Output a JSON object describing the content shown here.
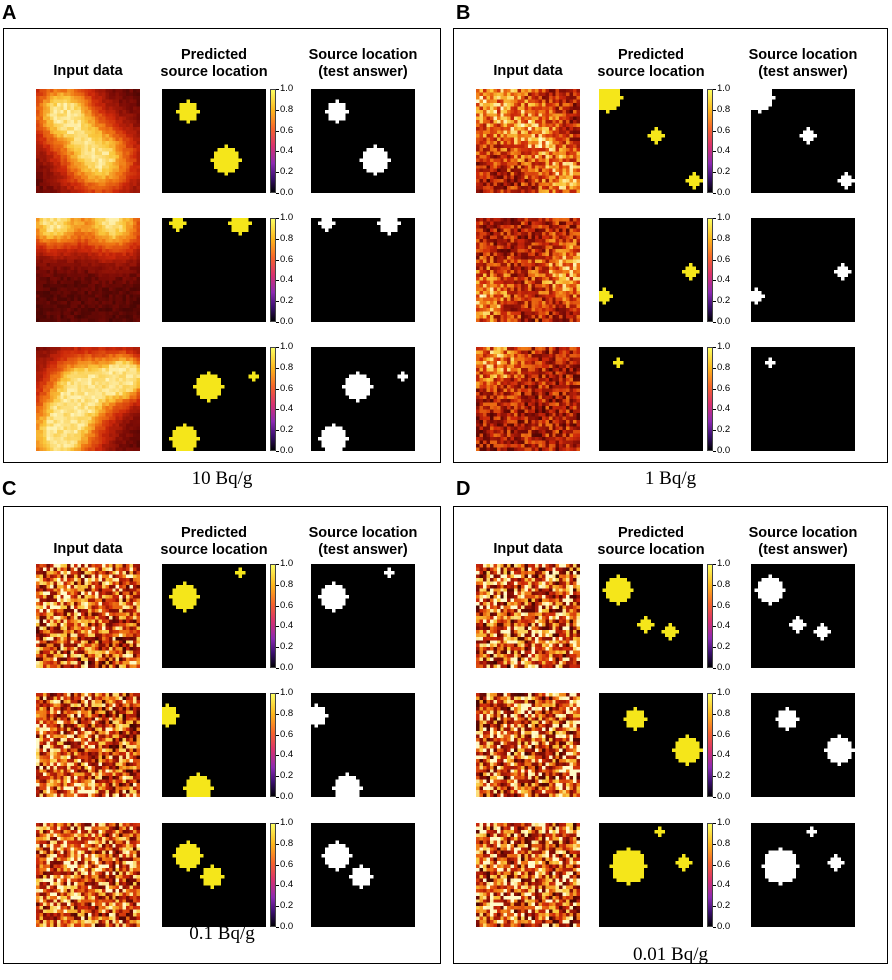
{
  "panels": [
    {
      "letter": "A",
      "caption": "10 Bq/g",
      "headers": {
        "input": "Input data",
        "pred_1": "Predicted",
        "pred_2": "source location",
        "ans_1": "Source location",
        "ans_2": "(test answer)"
      }
    },
    {
      "letter": "B",
      "caption": "1 Bq/g",
      "headers": {
        "input": "Input data",
        "pred_1": "Predicted",
        "pred_2": "source location",
        "ans_1": "Source location",
        "ans_2": "(test answer)"
      }
    },
    {
      "letter": "C",
      "caption": "0.1 Bq/g",
      "headers": {
        "input": "Input data",
        "pred_1": "Predicted",
        "pred_2": "source location",
        "ans_1": "Source location",
        "ans_2": "(test answer)"
      }
    },
    {
      "letter": "D",
      "caption": "0.01 Bq/g",
      "headers": {
        "input": "Input data",
        "pred_1": "Predicted",
        "pred_2": "source location",
        "ans_1": "Source location",
        "ans_2": "(test answer)"
      }
    }
  ],
  "colorbar_ticks": [
    "1.0",
    "0.8",
    "0.6",
    "0.4",
    "0.2",
    "0.0"
  ],
  "colors": {
    "pred_fill": "#f5e61a",
    "ans_fill": "#ffffff",
    "bg": "#000000",
    "noise_low": "#b8230e",
    "noise_high": "#fbe35a"
  }
}
